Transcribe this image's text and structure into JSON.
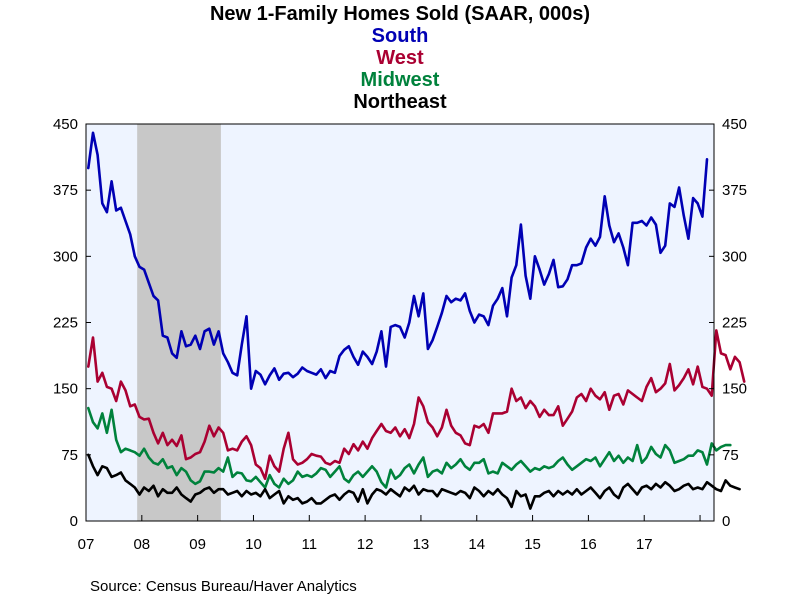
{
  "chart_data": {
    "type": "line",
    "title": "New 1-Family Homes Sold (SAAR, 000s)",
    "xlabel": "",
    "ylabel": "",
    "x_tick_labels": [
      "07",
      "08",
      "09",
      "10",
      "11",
      "12",
      "13",
      "14",
      "15",
      "16",
      "17"
    ],
    "x_range": [
      "2007-01",
      "2018-03"
    ],
    "ylim": [
      0,
      450
    ],
    "y_ticks": [
      0,
      75,
      150,
      225,
      300,
      375,
      450
    ],
    "secondary_y_ticks": [
      0,
      75,
      150,
      225,
      300,
      375,
      450
    ],
    "recession_shading": {
      "start": "2007-12",
      "end": "2009-06",
      "color": "#c8c8c8"
    },
    "plot_background": "#eef4ff",
    "grid": false,
    "legend": "title-stack",
    "series": [
      {
        "name": "South",
        "color": "#0000b4",
        "start": "2007-01",
        "frequency": "monthly",
        "values": [
          400,
          440,
          415,
          360,
          350,
          385,
          352,
          355,
          340,
          325,
          300,
          288,
          285,
          270,
          255,
          250,
          210,
          208,
          190,
          185,
          215,
          198,
          200,
          210,
          195,
          215,
          218,
          200,
          215,
          190,
          180,
          168,
          165,
          200,
          232,
          150,
          170,
          166,
          155,
          165,
          173,
          160,
          167,
          168,
          163,
          167,
          174,
          170,
          168,
          166,
          172,
          162,
          170,
          168,
          187,
          194,
          198,
          186,
          177,
          192,
          186,
          178,
          192,
          215,
          175,
          220,
          222,
          220,
          208,
          225,
          255,
          232,
          258,
          195,
          205,
          220,
          236,
          255,
          248,
          252,
          250,
          258,
          238,
          225,
          234,
          232,
          222,
          244,
          252,
          264,
          232,
          276,
          290,
          336,
          278,
          252,
          300,
          285,
          268,
          280,
          296,
          265,
          266,
          274,
          290,
          290,
          292,
          310,
          320,
          312,
          322,
          368,
          335,
          316,
          326,
          310,
          290,
          338,
          338,
          340,
          335,
          344,
          336,
          304,
          312,
          360,
          356,
          378,
          346,
          320,
          366,
          360,
          345,
          410
        ]
      },
      {
        "name": "West",
        "color": "#aa0032",
        "start": "2007-01",
        "frequency": "monthly",
        "values": [
          175,
          208,
          158,
          168,
          152,
          150,
          136,
          158,
          148,
          130,
          132,
          118,
          115,
          116,
          100,
          88,
          100,
          86,
          92,
          85,
          97,
          70,
          72,
          76,
          78,
          90,
          108,
          96,
          106,
          100,
          80,
          82,
          80,
          90,
          96,
          86,
          64,
          60,
          48,
          74,
          62,
          56,
          82,
          100,
          70,
          64,
          66,
          70,
          76,
          74,
          73,
          66,
          64,
          68,
          66,
          82,
          76,
          87,
          80,
          90,
          82,
          94,
          102,
          110,
          102,
          100,
          106,
          96,
          104,
          94,
          110,
          140,
          130,
          112,
          106,
          96,
          106,
          126,
          108,
          100,
          97,
          88,
          86,
          108,
          106,
          110,
          100,
          122,
          122,
          122,
          124,
          150,
          136,
          140,
          128,
          136,
          130,
          118,
          126,
          120,
          120,
          130,
          108,
          116,
          124,
          140,
          144,
          136,
          150,
          142,
          138,
          146,
          126,
          142,
          144,
          132,
          148,
          144,
          140,
          136,
          152,
          162,
          146,
          150,
          156,
          178,
          148,
          154,
          162,
          172,
          155,
          175,
          152,
          150,
          142,
          216,
          190,
          188,
          172,
          186,
          180,
          158
        ]
      },
      {
        "name": "Midwest",
        "color": "#00823c",
        "start": "2007-01",
        "frequency": "monthly",
        "values": [
          128,
          112,
          105,
          122,
          100,
          126,
          92,
          78,
          82,
          80,
          78,
          74,
          82,
          72,
          66,
          64,
          70,
          60,
          62,
          52,
          60,
          56,
          46,
          42,
          45,
          56,
          56,
          55,
          60,
          56,
          72,
          50,
          55,
          54,
          46,
          45,
          50,
          44,
          38,
          52,
          42,
          38,
          48,
          42,
          46,
          56,
          50,
          52,
          50,
          54,
          60,
          58,
          50,
          56,
          62,
          48,
          44,
          52,
          56,
          50,
          56,
          62,
          56,
          44,
          38,
          58,
          48,
          52,
          60,
          64,
          54,
          64,
          72,
          50,
          56,
          58,
          54,
          66,
          60,
          64,
          70,
          62,
          58,
          66,
          66,
          70,
          54,
          56,
          54,
          66,
          62,
          58,
          64,
          68,
          62,
          56,
          60,
          58,
          62,
          60,
          62,
          68,
          72,
          64,
          58,
          62,
          66,
          70,
          68,
          72,
          62,
          70,
          78,
          68,
          74,
          66,
          72,
          68,
          86,
          66,
          72,
          84,
          76,
          72,
          86,
          80,
          66,
          68,
          70,
          74,
          74,
          80,
          78,
          64,
          88,
          80,
          84,
          86,
          86
        ]
      },
      {
        "name": "Northeast",
        "color": "#000000",
        "start": "2007-01",
        "frequency": "monthly",
        "values": [
          75,
          62,
          52,
          62,
          60,
          50,
          52,
          55,
          46,
          42,
          38,
          30,
          38,
          34,
          40,
          28,
          36,
          32,
          32,
          38,
          30,
          26,
          22,
          30,
          32,
          36,
          38,
          32,
          36,
          36,
          30,
          32,
          34,
          28,
          34,
          30,
          32,
          28,
          36,
          26,
          30,
          34,
          20,
          28,
          24,
          26,
          20,
          22,
          26,
          20,
          20,
          24,
          28,
          30,
          24,
          30,
          34,
          32,
          22,
          36,
          20,
          30,
          36,
          34,
          30,
          36,
          32,
          28,
          38,
          34,
          40,
          30,
          36,
          34,
          34,
          28,
          36,
          34,
          32,
          30,
          34,
          32,
          26,
          38,
          34,
          28,
          34,
          30,
          36,
          30,
          26,
          16,
          34,
          28,
          30,
          14,
          28,
          28,
          32,
          34,
          28,
          34,
          30,
          34,
          30,
          36,
          30,
          34,
          38,
          32,
          26,
          34,
          38,
          30,
          26,
          38,
          42,
          36,
          30,
          38,
          40,
          36,
          42,
          38,
          44,
          40,
          34,
          36,
          40,
          42,
          36,
          38,
          36,
          44,
          40,
          36,
          34,
          46,
          40,
          38,
          36
        ]
      }
    ]
  },
  "footer": {
    "source": "Source:  Census Bureau/Haver Analytics"
  }
}
